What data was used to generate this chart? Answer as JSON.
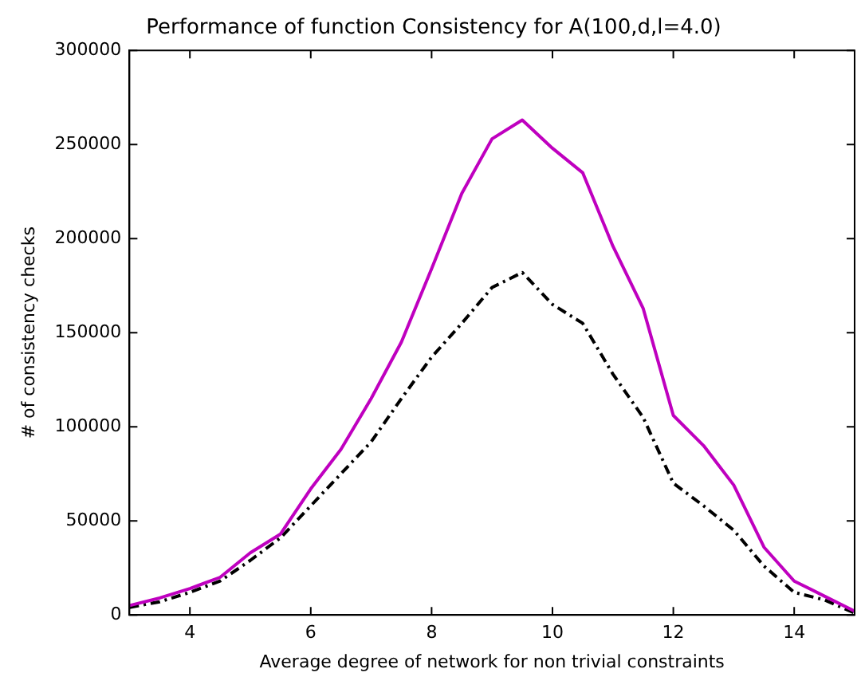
{
  "chart_data": {
    "type": "line",
    "title": "Performance of function Consistency for A(100,d,l=4.0)",
    "xlabel": "Average degree of network for non trivial constraints",
    "ylabel": "# of consistency checks",
    "x": [
      3,
      3.5,
      4,
      4.5,
      5,
      5.5,
      6,
      6.5,
      7,
      7.5,
      8,
      8.5,
      9,
      9.5,
      10,
      10.5,
      11,
      11.5,
      12,
      12.5,
      13,
      13.5,
      14,
      14.5,
      15
    ],
    "series": [
      {
        "color": "#bf00bf",
        "line_style": "solid",
        "values": [
          5000,
          9000,
          14000,
          20000,
          33000,
          43000,
          67000,
          88000,
          115000,
          145000,
          184000,
          224000,
          253000,
          263000,
          248000,
          235000,
          196000,
          163000,
          106000,
          90000,
          69000,
          36000,
          18000,
          10000,
          2000
        ]
      },
      {
        "color": "#000000",
        "line_style": "dashed",
        "values": [
          4000,
          7000,
          12000,
          18000,
          29000,
          41000,
          58000,
          75000,
          92000,
          115000,
          137000,
          155000,
          174000,
          182000,
          165000,
          155000,
          128000,
          105000,
          70000,
          58000,
          45000,
          26000,
          12000,
          8000,
          1000
        ]
      }
    ],
    "xlim": [
      3,
      15
    ],
    "xticks": [
      4,
      6,
      8,
      10,
      12,
      14
    ],
    "ylim": [
      0,
      300000
    ],
    "yticks": [
      0,
      50000,
      100000,
      150000,
      200000,
      250000,
      300000
    ],
    "grid": false,
    "legend": false,
    "marker": "none"
  }
}
